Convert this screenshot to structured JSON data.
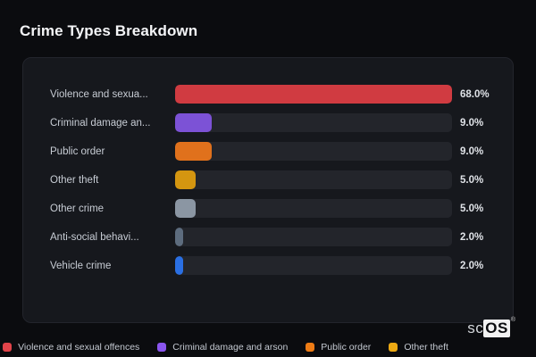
{
  "page": {
    "title": "Crime Types Breakdown",
    "background_color": "#0b0c0f",
    "card_background_color": "#16181d",
    "track_color": "#23252b"
  },
  "chart_data": {
    "type": "bar",
    "orientation": "horizontal",
    "title": "Crime Types Breakdown",
    "categories": [
      "Violence and sexua...",
      "Criminal damage an...",
      "Public order",
      "Other theft",
      "Other crime",
      "Anti-social behavi...",
      "Vehicle crime"
    ],
    "values": [
      68.0,
      9.0,
      9.0,
      5.0,
      5.0,
      2.0,
      2.0
    ],
    "value_labels": [
      "68.0%",
      "9.0%",
      "9.0%",
      "5.0%",
      "5.0%",
      "2.0%",
      "2.0%"
    ],
    "bar_colors": [
      "#d03b41",
      "#7c52d6",
      "#e0711c",
      "#d49610",
      "#8b96a3",
      "#5d6c7e",
      "#2a6fe3"
    ],
    "max_value": 68.0,
    "unit": "%",
    "grid": false,
    "legend_position": "bottom",
    "legend": [
      {
        "label": "Violence and sexual offences",
        "color": "#e2444a"
      },
      {
        "label": "Criminal damage and arson",
        "color": "#8a55ee"
      },
      {
        "label": "Public order",
        "color": "#ee7c15"
      },
      {
        "label": "Other theft",
        "color": "#eca913"
      }
    ]
  },
  "logo": {
    "prefix": "sc",
    "suffix": "OS",
    "registered": "®"
  }
}
